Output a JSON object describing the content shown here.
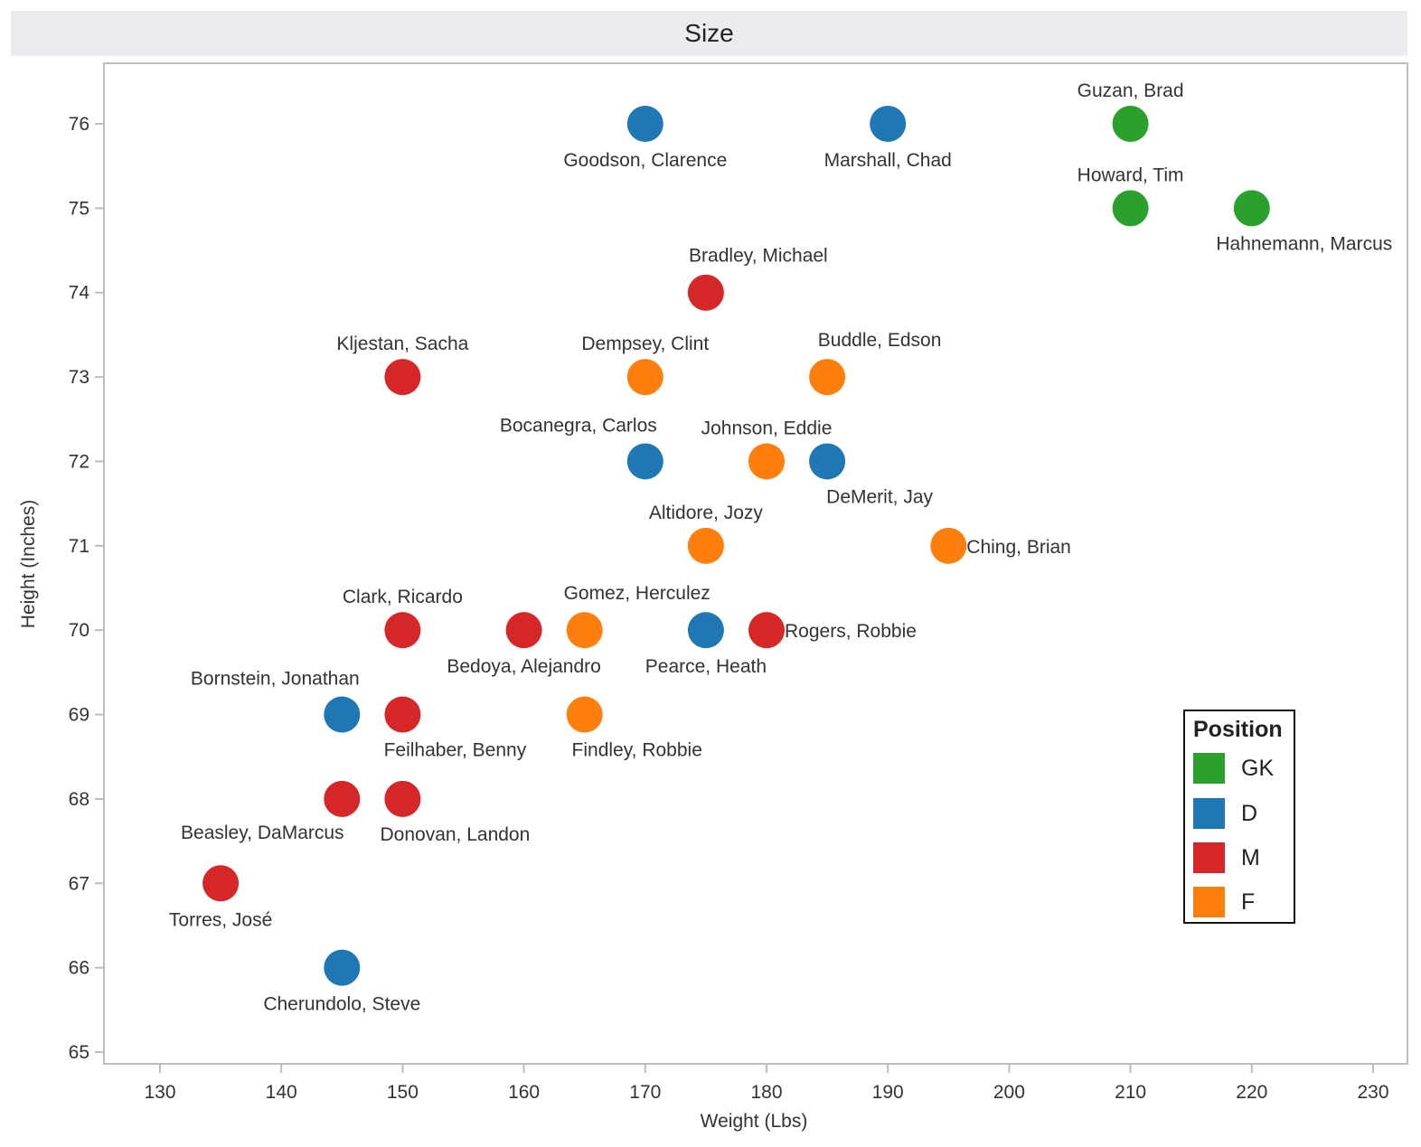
{
  "chart_data": {
    "type": "scatter",
    "title": "Size",
    "xlabel": "Weight (Lbs)",
    "ylabel": "Height (Inches)",
    "xlim": [
      125.5,
      233
    ],
    "ylim": [
      64.85,
      76.7
    ],
    "xticks": [
      130,
      140,
      150,
      160,
      170,
      180,
      190,
      200,
      210,
      220,
      230
    ],
    "yticks": [
      65,
      66,
      67,
      68,
      69,
      70,
      71,
      72,
      73,
      74,
      75,
      76
    ],
    "grid": false,
    "legend": {
      "title": "Position",
      "placement": "right",
      "entries": [
        {
          "label": "GK",
          "color": "#2ca02c"
        },
        {
          "label": "D",
          "color": "#1f77b4"
        },
        {
          "label": "M",
          "color": "#d62728"
        },
        {
          "label": "F",
          "color": "#ff7f0e"
        }
      ]
    },
    "points": [
      {
        "name": "Goodson, Clarence",
        "x": 170,
        "y": 76,
        "position": "D",
        "label_pos": "below"
      },
      {
        "name": "Marshall, Chad",
        "x": 190,
        "y": 76,
        "position": "D",
        "label_pos": "below"
      },
      {
        "name": "Guzan, Brad",
        "x": 210,
        "y": 76,
        "position": "GK",
        "label_pos": "above"
      },
      {
        "name": "Howard, Tim",
        "x": 210,
        "y": 75,
        "position": "GK",
        "label_pos": "above"
      },
      {
        "name": "Hahnemann, Marcus",
        "x": 220,
        "y": 75,
        "position": "GK",
        "label_pos": "below-right"
      },
      {
        "name": "Bradley, Michael",
        "x": 175,
        "y": 74,
        "position": "M",
        "label_pos": "above-right"
      },
      {
        "name": "Kljestan, Sacha",
        "x": 150,
        "y": 73,
        "position": "M",
        "label_pos": "above"
      },
      {
        "name": "Dempsey, Clint",
        "x": 170,
        "y": 73,
        "position": "F",
        "label_pos": "above"
      },
      {
        "name": "Buddle, Edson",
        "x": 185,
        "y": 73,
        "position": "F",
        "label_pos": "above-right"
      },
      {
        "name": "Bocanegra, Carlos",
        "x": 170,
        "y": 72,
        "position": "D",
        "label_pos": "above-left"
      },
      {
        "name": "Johnson, Eddie",
        "x": 180,
        "y": 72,
        "position": "F",
        "label_pos": "above"
      },
      {
        "name": "DeMerit, Jay",
        "x": 185,
        "y": 72,
        "position": "D",
        "label_pos": "below-right"
      },
      {
        "name": "Altidore, Jozy",
        "x": 175,
        "y": 71,
        "position": "F",
        "label_pos": "above"
      },
      {
        "name": "Ching, Brian",
        "x": 195,
        "y": 71,
        "position": "F",
        "label_pos": "right"
      },
      {
        "name": "Clark, Ricardo",
        "x": 150,
        "y": 70,
        "position": "M",
        "label_pos": "above"
      },
      {
        "name": "Bedoya, Alejandro",
        "x": 160,
        "y": 70,
        "position": "M",
        "label_pos": "below"
      },
      {
        "name": "Gomez, Herculez",
        "x": 165,
        "y": 70,
        "position": "F",
        "label_pos": "above-right"
      },
      {
        "name": "Pearce, Heath",
        "x": 175,
        "y": 70,
        "position": "D",
        "label_pos": "below"
      },
      {
        "name": "Rogers, Robbie",
        "x": 180,
        "y": 70,
        "position": "M",
        "label_pos": "right"
      },
      {
        "name": "Bornstein, Jonathan",
        "x": 145,
        "y": 69,
        "position": "D",
        "label_pos": "above-left"
      },
      {
        "name": "Feilhaber, Benny",
        "x": 150,
        "y": 69,
        "position": "M",
        "label_pos": "below-right"
      },
      {
        "name": "Findley, Robbie",
        "x": 165,
        "y": 69,
        "position": "F",
        "label_pos": "below-right"
      },
      {
        "name": "Beasley, DaMarcus",
        "x": 145,
        "y": 68,
        "position": "M",
        "label_pos": "below-left"
      },
      {
        "name": "Donovan, Landon",
        "x": 150,
        "y": 68,
        "position": "M",
        "label_pos": "below-right"
      },
      {
        "name": "Torres, José",
        "x": 135,
        "y": 67,
        "position": "M",
        "label_pos": "below"
      },
      {
        "name": "Cherundolo, Steve",
        "x": 145,
        "y": 66,
        "position": "D",
        "label_pos": "below"
      }
    ]
  }
}
